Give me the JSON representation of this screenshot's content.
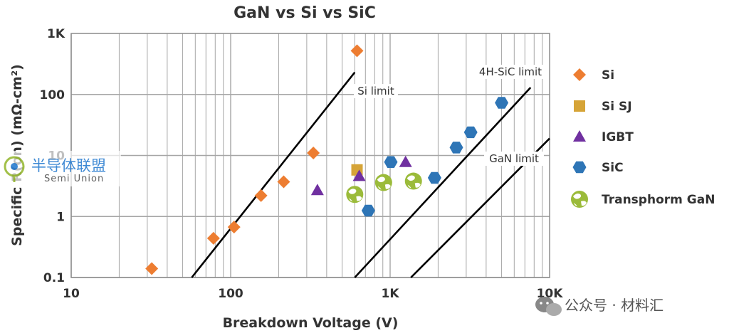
{
  "chart_data": {
    "type": "scatter",
    "title": "GaN vs Si vs SiC",
    "xlabel": "Breakdown Voltage (V)",
    "ylabel": "Specific R(on) (mΩ-cm²)",
    "x_scale": "log",
    "y_scale": "log",
    "xlim": [
      10,
      10000
    ],
    "ylim": [
      0.1,
      1000
    ],
    "x_ticks": [
      {
        "value": 10,
        "label": "10"
      },
      {
        "value": 100,
        "label": "100"
      },
      {
        "value": 1000,
        "label": "1K"
      },
      {
        "value": 10000,
        "label": "10K"
      }
    ],
    "y_ticks": [
      {
        "value": 0.1,
        "label": "0.1"
      },
      {
        "value": 1,
        "label": "1"
      },
      {
        "value": 10,
        "label": "10"
      },
      {
        "value": 100,
        "label": "100"
      },
      {
        "value": 1000,
        "label": "1K"
      }
    ],
    "grid": true,
    "legend_position": "right",
    "series": [
      {
        "name": "Si",
        "marker": "diamond",
        "color": "#ed7d31",
        "points": [
          [
            32,
            0.14
          ],
          [
            78,
            0.44
          ],
          [
            105,
            0.67
          ],
          [
            155,
            2.2
          ],
          [
            215,
            3.7
          ],
          [
            330,
            11
          ],
          [
            620,
            520
          ]
        ]
      },
      {
        "name": "Si SJ",
        "marker": "square",
        "color": "#d6a437",
        "points": [
          [
            620,
            5.8
          ]
        ]
      },
      {
        "name": "IGBT",
        "marker": "triangle",
        "color": "#7030a0",
        "points": [
          [
            350,
            2.7
          ],
          [
            640,
            4.6
          ],
          [
            1250,
            7.8
          ]
        ]
      },
      {
        "name": "SiC",
        "marker": "hexagon",
        "color": "#2e75b6",
        "points": [
          [
            730,
            1.25
          ],
          [
            1010,
            7.8
          ],
          [
            1900,
            4.3
          ],
          [
            2600,
            13.5
          ],
          [
            3200,
            24
          ],
          [
            5000,
            73
          ]
        ]
      },
      {
        "name": "Transphorm GaN",
        "marker": "globe",
        "color": "#9bbb3a",
        "points": [
          [
            600,
            2.3
          ],
          [
            910,
            3.6
          ],
          [
            1400,
            3.8
          ]
        ]
      }
    ],
    "limit_lines": [
      {
        "label": "Si limit",
        "from": [
          57,
          0.1
        ],
        "to": [
          600,
          230
        ]
      },
      {
        "label": "4H-SiC limit",
        "from": [
          600,
          0.1
        ],
        "to": [
          7600,
          130
        ]
      },
      {
        "label": "GaN limit",
        "from": [
          1350,
          0.1
        ],
        "to": [
          10000,
          19
        ]
      }
    ]
  },
  "watermarks": {
    "top_left": {
      "text": "半导体联盟",
      "sub": "Semi Union"
    },
    "bottom_right": {
      "text": "公众号 · 材料汇"
    }
  },
  "colors": {
    "grid": "#a6a6a6",
    "axis_text": "#333333",
    "limit_line": "#000000"
  }
}
